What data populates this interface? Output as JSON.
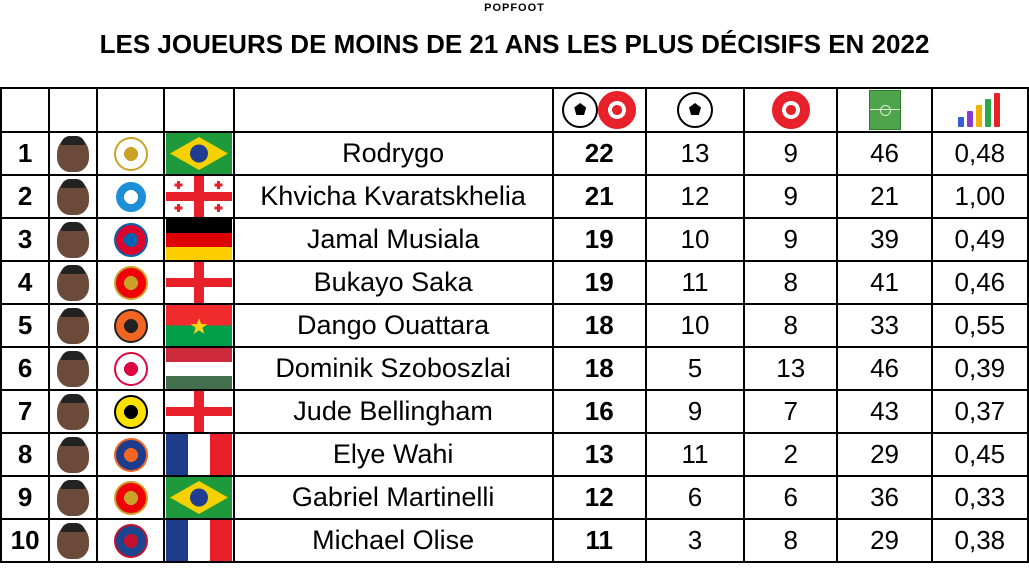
{
  "brand": "POPFOOT",
  "title": "LES JOUEURS DE MOINS DE 21 ANS LES PLUS DÉCISIFS EN 2022",
  "header_icons": {
    "contributions": [
      "soccer-ball-icon",
      "target-icon"
    ],
    "goals": "soccer-ball-icon",
    "assists": "target-icon",
    "matches": "pitch-icon",
    "ratio": "bar-chart-trend-icon"
  },
  "colors": {
    "target_red": "#e8202a",
    "pitch_green": "#4fa34a",
    "border": "#000000"
  },
  "rows": [
    {
      "rank": "1",
      "name": "Rodrygo",
      "total": "22",
      "goals": "13",
      "assists": "9",
      "matches": "46",
      "ratio": "0,48",
      "club_icon": "real-madrid-crest-icon",
      "flag_icon": "brazil-flag-icon"
    },
    {
      "rank": "2",
      "name": "Khvicha Kvaratskhelia",
      "total": "21",
      "goals": "12",
      "assists": "9",
      "matches": "21",
      "ratio": "1,00",
      "club_icon": "napoli-crest-icon",
      "flag_icon": "georgia-flag-icon"
    },
    {
      "rank": "3",
      "name": "Jamal Musiala",
      "total": "19",
      "goals": "10",
      "assists": "9",
      "matches": "39",
      "ratio": "0,49",
      "club_icon": "bayern-munich-crest-icon",
      "flag_icon": "germany-flag-icon"
    },
    {
      "rank": "4",
      "name": "Bukayo Saka",
      "total": "19",
      "goals": "11",
      "assists": "8",
      "matches": "41",
      "ratio": "0,46",
      "club_icon": "arsenal-crest-icon",
      "flag_icon": "england-flag-icon"
    },
    {
      "rank": "5",
      "name": "Dango Ouattara",
      "total": "18",
      "goals": "10",
      "assists": "8",
      "matches": "33",
      "ratio": "0,55",
      "club_icon": "fc-lorient-crest-icon",
      "flag_icon": "burkina-faso-flag-icon"
    },
    {
      "rank": "6",
      "name": "Dominik Szoboszlai",
      "total": "18",
      "goals": "5",
      "assists": "13",
      "matches": "46",
      "ratio": "0,39",
      "club_icon": "rb-leipzig-crest-icon",
      "flag_icon": "hungary-flag-icon"
    },
    {
      "rank": "7",
      "name": "Jude Bellingham",
      "total": "16",
      "goals": "9",
      "assists": "7",
      "matches": "43",
      "ratio": "0,37",
      "club_icon": "borussia-dortmund-crest-icon",
      "flag_icon": "england-flag-icon"
    },
    {
      "rank": "8",
      "name": "Elye Wahi",
      "total": "13",
      "goals": "11",
      "assists": "2",
      "matches": "29",
      "ratio": "0,45",
      "club_icon": "montpellier-crest-icon",
      "flag_icon": "france-flag-icon"
    },
    {
      "rank": "9",
      "name": "Gabriel Martinelli",
      "total": "12",
      "goals": "6",
      "assists": "6",
      "matches": "36",
      "ratio": "0,33",
      "club_icon": "arsenal-crest-icon",
      "flag_icon": "brazil-flag-icon"
    },
    {
      "rank": "10",
      "name": "Michael Olise",
      "total": "11",
      "goals": "3",
      "assists": "8",
      "matches": "29",
      "ratio": "0,38",
      "club_icon": "crystal-palace-crest-icon",
      "flag_icon": "france-flag-icon"
    }
  ]
}
